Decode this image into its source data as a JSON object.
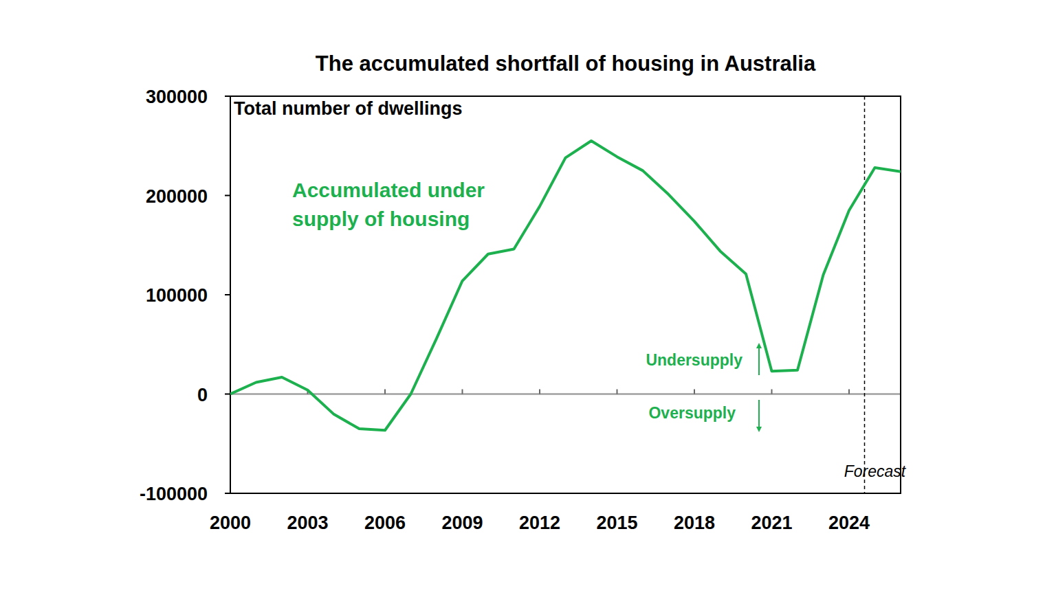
{
  "chart_data": {
    "type": "line",
    "title": "The accumulated shortfall of housing in Australia",
    "ylabel": "Total number of dwellings",
    "x": [
      2000,
      2001,
      2002,
      2003,
      2004,
      2005,
      2006,
      2007,
      2008,
      2009,
      2010,
      2011,
      2012,
      2013,
      2014,
      2015,
      2016,
      2017,
      2018,
      2019,
      2020,
      2021,
      2022,
      2023,
      2024,
      2025,
      2026
    ],
    "series": [
      {
        "color": "#1db04e",
        "values": [
          0,
          11800,
          17000,
          4000,
          -20000,
          -35000,
          -36500,
          0,
          56000,
          114000,
          141000,
          146000,
          189000,
          238000,
          255000,
          239000,
          225000,
          201000,
          174000,
          144000,
          121000,
          23000,
          24000,
          120000,
          185000,
          228000,
          224000
        ]
      }
    ],
    "xlim": [
      2000,
      2026
    ],
    "xticks": [
      2000,
      2003,
      2006,
      2009,
      2012,
      2015,
      2018,
      2021,
      2024
    ],
    "ylim": [
      -100000,
      300000
    ],
    "yticks": [
      -100000,
      0,
      100000,
      200000,
      300000
    ],
    "grid": false,
    "annotations": {
      "series_label": [
        "Accumulated under",
        "supply of housing"
      ],
      "undersupply": "Undersupply",
      "oversupply": "Oversupply"
    },
    "forecast": {
      "x": 2024.6,
      "label": "Forecast"
    }
  }
}
